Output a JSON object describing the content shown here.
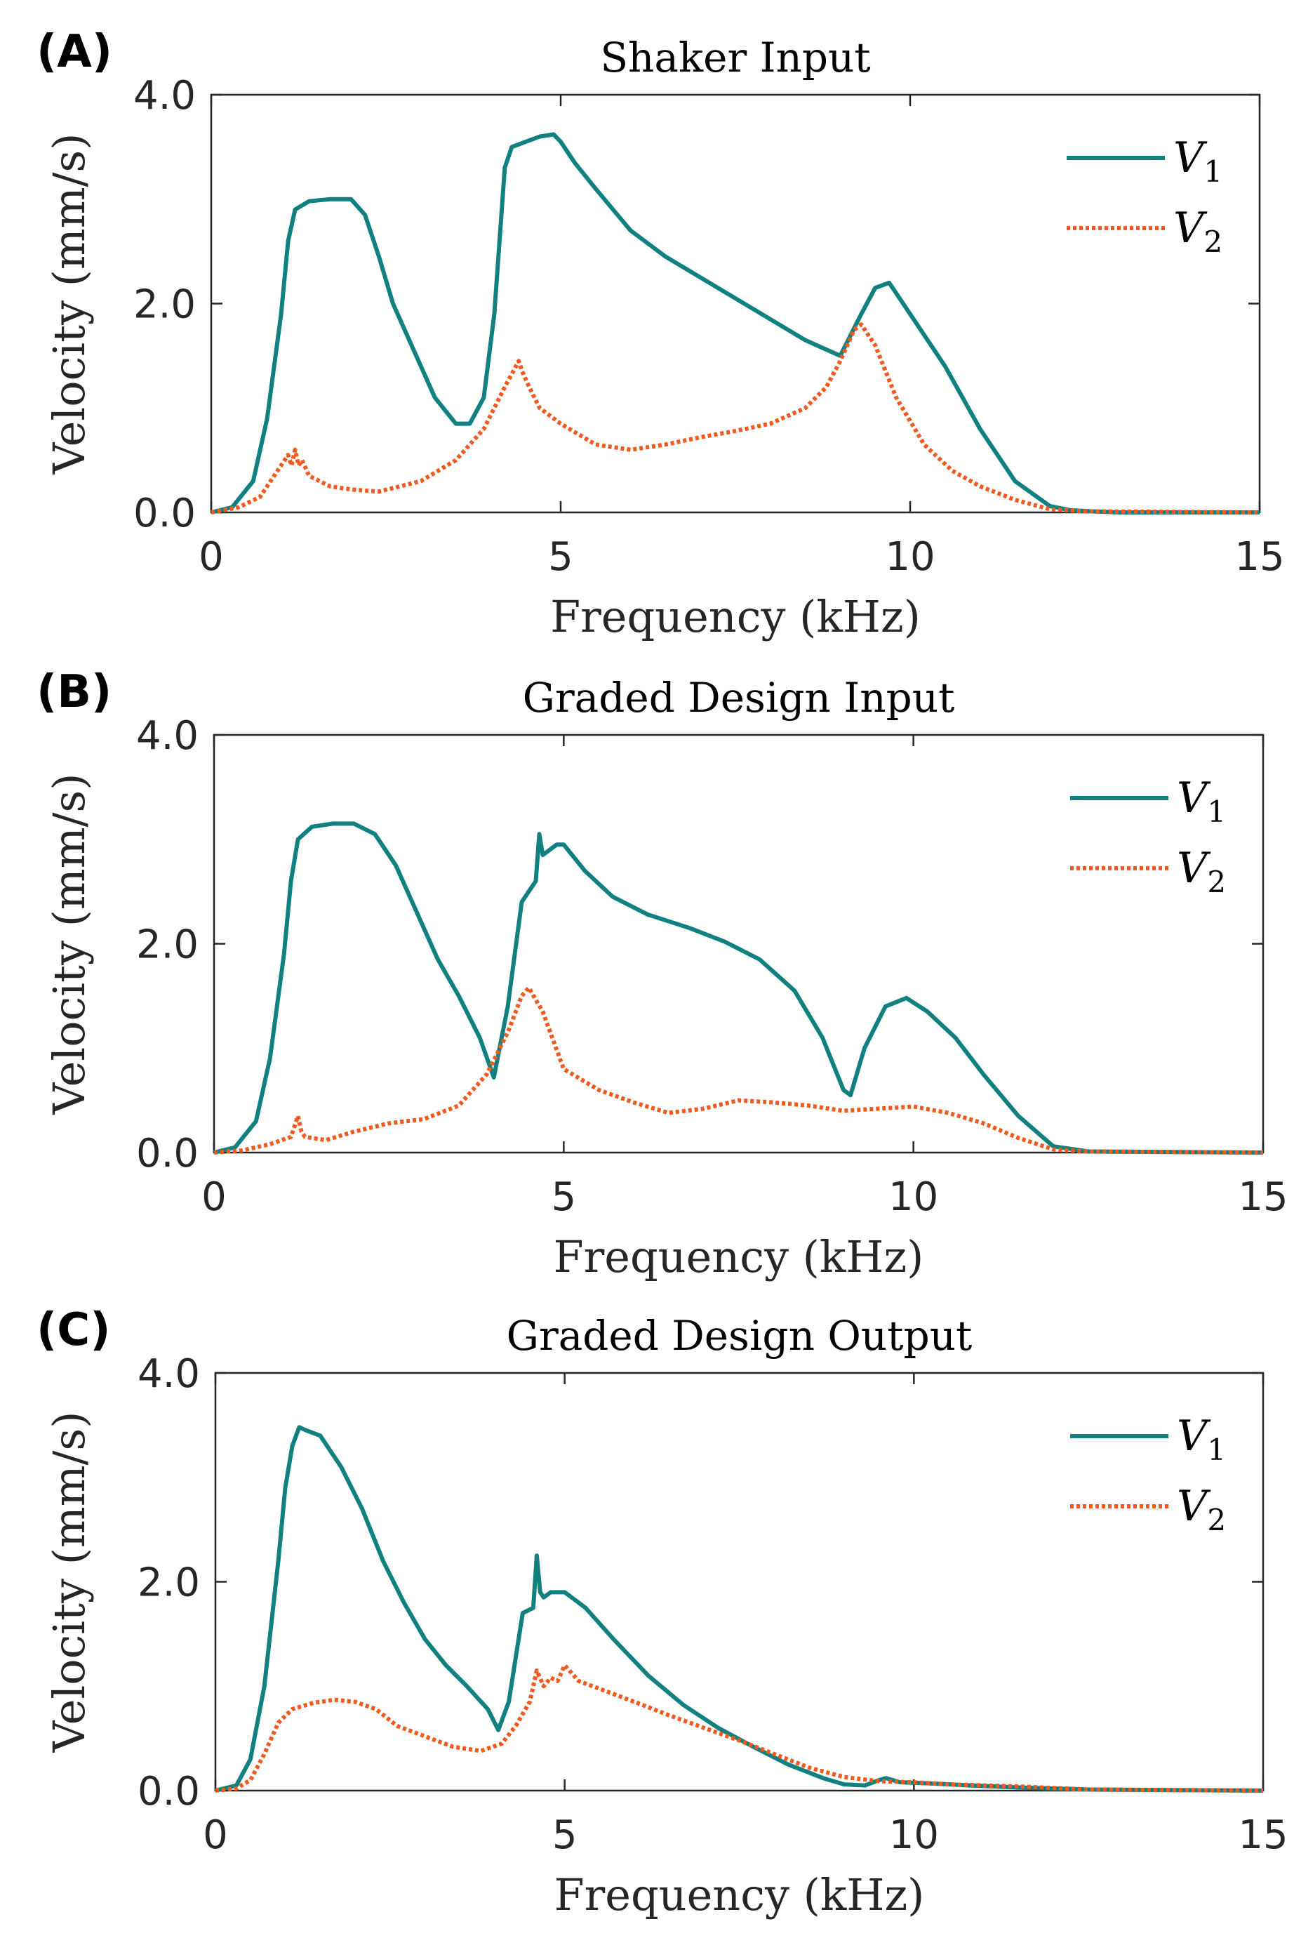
{
  "colors": {
    "v1": "#118080",
    "v2": "#f05a1e",
    "axis": "#262626"
  },
  "chart_data": [
    {
      "type": "line",
      "panel": "(A)",
      "title": "Shaker Input",
      "xlabel": "Frequency (kHz)",
      "ylabel": "Velocity (mm/s)",
      "xlim": [
        0,
        15
      ],
      "ylim": [
        0,
        4
      ],
      "xticks": [
        "0",
        "5",
        "10",
        "15"
      ],
      "yticks": [
        "0.0",
        "2.0",
        "4.0"
      ],
      "legend_position": "top-right",
      "series": [
        {
          "name": "V",
          "subscript": "1",
          "style": "solid",
          "x": [
            0,
            0.3,
            0.6,
            0.8,
            1.0,
            1.1,
            1.2,
            1.4,
            1.7,
            2.0,
            2.2,
            2.4,
            2.6,
            2.9,
            3.2,
            3.5,
            3.7,
            3.9,
            4.05,
            4.2,
            4.3,
            4.5,
            4.7,
            4.9,
            5.0,
            5.2,
            5.5,
            6.0,
            6.5,
            7.0,
            7.5,
            8.0,
            8.5,
            9.0,
            9.3,
            9.5,
            9.7,
            10.0,
            10.5,
            11.0,
            11.5,
            12.0,
            12.3,
            12.6,
            13,
            15
          ],
          "y": [
            0,
            0.05,
            0.3,
            0.9,
            1.9,
            2.6,
            2.9,
            2.98,
            3.0,
            3.0,
            2.85,
            2.45,
            2.0,
            1.55,
            1.1,
            0.85,
            0.85,
            1.1,
            1.9,
            3.3,
            3.5,
            3.55,
            3.6,
            3.62,
            3.55,
            3.35,
            3.1,
            2.7,
            2.45,
            2.25,
            2.05,
            1.85,
            1.65,
            1.5,
            1.9,
            2.15,
            2.2,
            1.9,
            1.4,
            0.8,
            0.3,
            0.06,
            0.02,
            0.01,
            0.0,
            0.0
          ]
        },
        {
          "name": "V",
          "subscript": "2",
          "style": "dotted",
          "x": [
            0,
            0.4,
            0.7,
            0.9,
            1.1,
            1.15,
            1.2,
            1.25,
            1.3,
            1.4,
            1.7,
            2.0,
            2.4,
            3.0,
            3.5,
            3.9,
            4.2,
            4.4,
            4.45,
            4.55,
            4.7,
            5.0,
            5.5,
            6.0,
            6.5,
            7.0,
            7.5,
            8.0,
            8.5,
            8.8,
            9.0,
            9.2,
            9.3,
            9.5,
            9.8,
            10.2,
            10.6,
            11.0,
            11.5,
            12.0,
            12.5,
            15
          ],
          "y": [
            0,
            0.05,
            0.15,
            0.35,
            0.55,
            0.45,
            0.6,
            0.45,
            0.5,
            0.35,
            0.25,
            0.22,
            0.2,
            0.3,
            0.5,
            0.8,
            1.2,
            1.45,
            1.35,
            1.2,
            1.0,
            0.85,
            0.65,
            0.6,
            0.65,
            0.72,
            0.78,
            0.85,
            1.0,
            1.2,
            1.45,
            1.75,
            1.8,
            1.6,
            1.1,
            0.65,
            0.4,
            0.25,
            0.12,
            0.03,
            0.01,
            0.0
          ]
        }
      ]
    },
    {
      "type": "line",
      "panel": "(B)",
      "title": "Graded Design Input",
      "xlabel": "Frequency (kHz)",
      "ylabel": "Velocity (mm/s)",
      "xlim": [
        0,
        15
      ],
      "ylim": [
        0,
        4
      ],
      "xticks": [
        "0",
        "5",
        "10",
        "15"
      ],
      "yticks": [
        "0.0",
        "2.0",
        "4.0"
      ],
      "legend_position": "top-right",
      "series": [
        {
          "name": "V",
          "subscript": "1",
          "style": "solid",
          "x": [
            0,
            0.3,
            0.6,
            0.8,
            1.0,
            1.1,
            1.2,
            1.4,
            1.7,
            2.0,
            2.3,
            2.6,
            2.9,
            3.2,
            3.5,
            3.8,
            4.0,
            4.2,
            4.4,
            4.5,
            4.6,
            4.65,
            4.7,
            4.9,
            5.0,
            5.3,
            5.7,
            6.2,
            6.8,
            7.3,
            7.8,
            8.3,
            8.7,
            9.0,
            9.1,
            9.3,
            9.6,
            9.9,
            10.2,
            10.6,
            11.0,
            11.5,
            12.0,
            12.5,
            15
          ],
          "y": [
            0,
            0.05,
            0.3,
            0.9,
            1.9,
            2.6,
            3.0,
            3.12,
            3.15,
            3.15,
            3.05,
            2.75,
            2.3,
            1.85,
            1.5,
            1.1,
            0.72,
            1.4,
            2.4,
            2.5,
            2.6,
            3.05,
            2.85,
            2.95,
            2.95,
            2.7,
            2.45,
            2.28,
            2.15,
            2.02,
            1.85,
            1.55,
            1.1,
            0.6,
            0.55,
            1.0,
            1.4,
            1.48,
            1.35,
            1.1,
            0.75,
            0.35,
            0.06,
            0.01,
            0.0
          ]
        },
        {
          "name": "V",
          "subscript": "2",
          "style": "dotted",
          "x": [
            0,
            0.4,
            0.8,
            1.1,
            1.2,
            1.25,
            1.3,
            1.6,
            2.0,
            2.5,
            3.0,
            3.5,
            3.9,
            4.2,
            4.4,
            4.5,
            4.7,
            5.0,
            5.5,
            6.0,
            6.5,
            7.0,
            7.5,
            8.0,
            8.5,
            9.0,
            9.5,
            10.0,
            10.5,
            11.0,
            11.5,
            12.0,
            12.5,
            15
          ],
          "y": [
            0,
            0.02,
            0.08,
            0.15,
            0.35,
            0.2,
            0.15,
            0.12,
            0.2,
            0.28,
            0.32,
            0.45,
            0.75,
            1.15,
            1.5,
            1.58,
            1.35,
            0.8,
            0.6,
            0.48,
            0.38,
            0.42,
            0.5,
            0.48,
            0.45,
            0.4,
            0.42,
            0.44,
            0.38,
            0.28,
            0.14,
            0.03,
            0.01,
            0.0
          ]
        }
      ]
    },
    {
      "type": "line",
      "panel": "(C)",
      "title": "Graded Design Output",
      "xlabel": "Frequency (kHz)",
      "ylabel": "Velocity (mm/s)",
      "xlim": [
        0,
        15
      ],
      "ylim": [
        0,
        4
      ],
      "xticks": [
        "0",
        "5",
        "10",
        "15"
      ],
      "yticks": [
        "0.0",
        "2.0",
        "4.0"
      ],
      "legend_position": "top-right",
      "series": [
        {
          "name": "V",
          "subscript": "1",
          "style": "solid",
          "x": [
            0,
            0.3,
            0.5,
            0.7,
            0.9,
            1.0,
            1.1,
            1.2,
            1.3,
            1.5,
            1.8,
            2.1,
            2.4,
            2.7,
            3.0,
            3.3,
            3.6,
            3.9,
            4.05,
            4.2,
            4.4,
            4.55,
            4.6,
            4.65,
            4.7,
            4.8,
            5.0,
            5.3,
            5.7,
            6.2,
            6.7,
            7.2,
            7.7,
            8.2,
            8.7,
            9.0,
            9.3,
            9.5,
            9.6,
            9.8,
            10.2,
            10.8,
            11.5,
            12.5,
            15
          ],
          "y": [
            0,
            0.05,
            0.3,
            1.0,
            2.2,
            2.9,
            3.3,
            3.48,
            3.45,
            3.4,
            3.1,
            2.7,
            2.2,
            1.8,
            1.45,
            1.2,
            1.0,
            0.78,
            0.58,
            0.85,
            1.7,
            1.75,
            2.25,
            1.9,
            1.85,
            1.9,
            1.9,
            1.75,
            1.45,
            1.1,
            0.82,
            0.6,
            0.42,
            0.25,
            0.12,
            0.06,
            0.05,
            0.1,
            0.12,
            0.08,
            0.07,
            0.05,
            0.03,
            0.01,
            0.0
          ]
        },
        {
          "name": "V",
          "subscript": "2",
          "style": "dotted",
          "x": [
            0,
            0.3,
            0.5,
            0.7,
            0.9,
            1.1,
            1.4,
            1.7,
            2.0,
            2.3,
            2.6,
            3.0,
            3.4,
            3.8,
            4.1,
            4.3,
            4.5,
            4.6,
            4.7,
            4.8,
            4.9,
            5.0,
            5.2,
            5.6,
            6.0,
            6.5,
            7.0,
            7.5,
            8.0,
            8.5,
            9.0,
            9.5,
            10.0,
            10.5,
            11.0,
            11.5,
            12.5,
            15
          ],
          "y": [
            0,
            0.02,
            0.1,
            0.35,
            0.65,
            0.78,
            0.84,
            0.87,
            0.85,
            0.78,
            0.62,
            0.52,
            0.42,
            0.38,
            0.45,
            0.62,
            0.85,
            1.15,
            1.0,
            1.08,
            1.05,
            1.2,
            1.05,
            0.95,
            0.85,
            0.72,
            0.6,
            0.48,
            0.35,
            0.22,
            0.13,
            0.09,
            0.08,
            0.06,
            0.05,
            0.04,
            0.01,
            0.0
          ]
        }
      ]
    }
  ]
}
